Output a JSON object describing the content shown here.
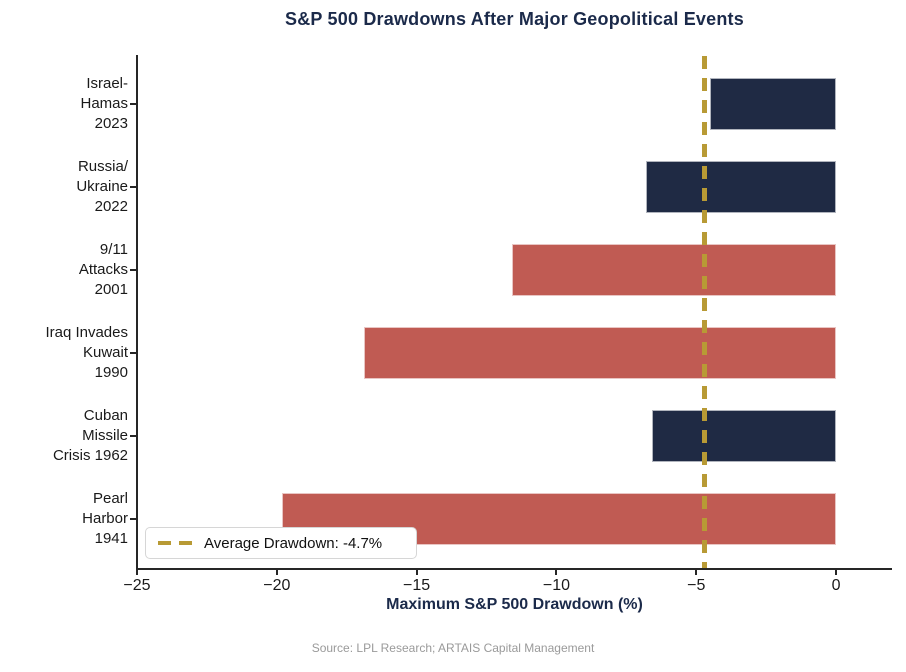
{
  "title": "S&P 500 Drawdowns After Major Geopolitical Events",
  "source": "Source: LPL Research; ARTAIS Capital Management",
  "colors": {
    "navy": "#1f2a44",
    "red": "#c05b53",
    "gold": "#b89a35",
    "title_navy": "#1b2a4a",
    "axis_black": "#262626",
    "source_gray": "#9a9a9a"
  },
  "chart_data": {
    "type": "bar",
    "orientation": "horizontal",
    "title": "S&P 500 Drawdowns After Major Geopolitical Events",
    "xlabel": "Maximum S&P 500 Drawdown (%)",
    "ylabel": "",
    "xlim": [
      -25,
      2
    ],
    "grid": false,
    "x_ticks": [
      -25,
      -20,
      -15,
      -10,
      -5,
      0
    ],
    "x_tick_labels": [
      "−25",
      "−20",
      "−15",
      "−10",
      "−5",
      "0"
    ],
    "categories": [
      "Israel-Hamas 2023",
      "Russia/Ukraine 2022",
      "9/11 Attacks 2001",
      "Iraq Invades Kuwait 1990",
      "Cuban Missile Crisis 1962",
      "Pearl Harbor 1941"
    ],
    "category_lines": [
      [
        "Israel-",
        "Hamas",
        "2023"
      ],
      [
        "Russia/",
        "Ukraine",
        "2022"
      ],
      [
        "9/11",
        "Attacks",
        "2001"
      ],
      [
        "Iraq Invades",
        "Kuwait",
        "1990"
      ],
      [
        "Cuban",
        "Missile",
        "Crisis 1962"
      ],
      [
        "Pearl",
        "Harbor",
        "1941"
      ]
    ],
    "values": [
      -4.5,
      -6.8,
      -11.6,
      -16.9,
      -6.6,
      -19.8
    ],
    "bar_colors": [
      "navy",
      "navy",
      "red",
      "red",
      "navy",
      "red"
    ],
    "average_line": {
      "value": -4.7,
      "label": "Average Drawdown: -4.7%",
      "style": "dashed",
      "color": "#b89a35"
    },
    "legend_position": "lower left"
  }
}
